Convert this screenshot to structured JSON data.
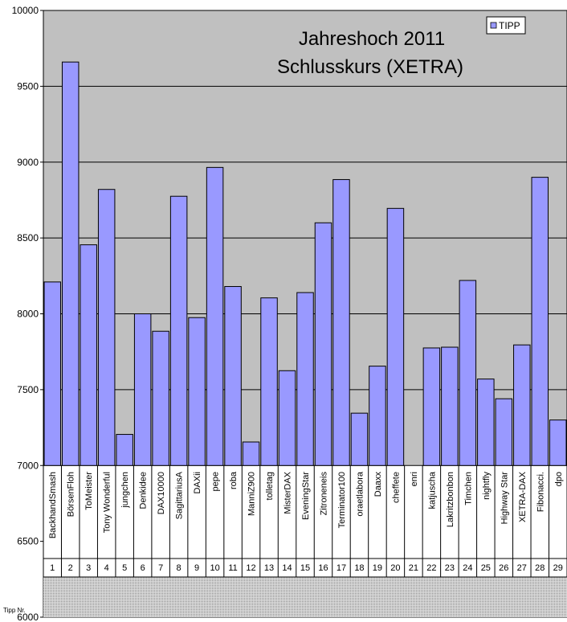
{
  "chart_data": {
    "type": "bar",
    "title_lines": [
      "Jahreshoch 2011",
      "Schlusskurs (XETRA)"
    ],
    "legend": [
      "TIPP"
    ],
    "legend_position": "top-right",
    "xlabel": "Tipp Nr.",
    "ylim": [
      6000,
      10000
    ],
    "yticks": [
      6000,
      6500,
      7000,
      7500,
      8000,
      8500,
      9000,
      9500,
      10000
    ],
    "ytick_labels": [
      "6000",
      "6500",
      "7000",
      "7500",
      "8000",
      "8500",
      "9000",
      "9500",
      "10000"
    ],
    "grid": true,
    "bar_color": "#9999ff",
    "plot_background": "#c0c0c0",
    "categories": [
      "BackhandSmash",
      "BörsenFloh",
      "ToMeister",
      "Tony Wonderful",
      "jungchen",
      "Denkidee",
      "DAX10000",
      "SagittariusA",
      "DAXii",
      "pepe",
      "roba",
      "ManniZ900",
      "tolletag",
      "MisterDAX",
      "EveningStar",
      "Zitroneneis",
      "Terminator100",
      "oraetlabora",
      "Daaxx",
      "cheffete",
      "enri",
      "katjuscha",
      "Lakritzbonbon",
      "Timchen",
      "nightfly",
      "Highway Star",
      "XETRA-DAX",
      "Fibonacci.",
      "dpo"
    ],
    "numbers": [
      "1",
      "2",
      "3",
      "4",
      "5",
      "6",
      "7",
      "8",
      "9",
      "10",
      "11",
      "12",
      "13",
      "14",
      "15",
      "16",
      "17",
      "18",
      "19",
      "20",
      "21",
      "22",
      "23",
      "24",
      "25",
      "26",
      "27",
      "28",
      "29"
    ],
    "series": [
      {
        "name": "TIPP",
        "values": [
          8210,
          9660,
          8455,
          8820,
          7205,
          8000,
          7885,
          8775,
          7975,
          8965,
          8180,
          7155,
          8105,
          7625,
          8140,
          8600,
          8885,
          7345,
          7655,
          8695,
          null,
          7775,
          7780,
          8220,
          7570,
          7440,
          7795,
          8900,
          7300
        ]
      }
    ]
  }
}
